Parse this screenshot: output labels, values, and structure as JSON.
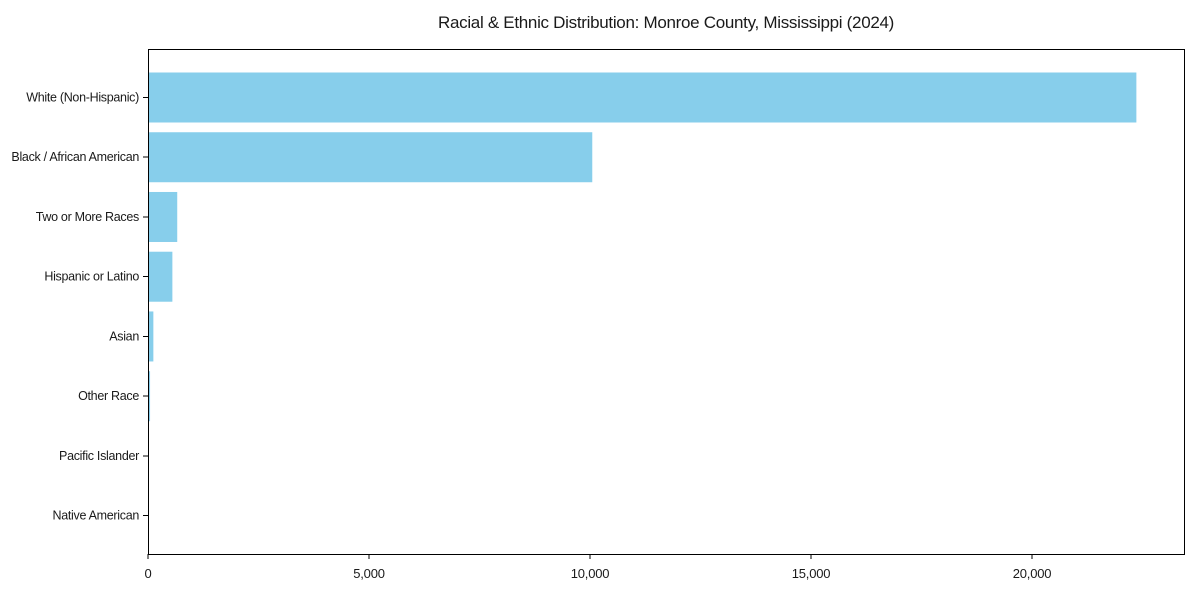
{
  "chart_data": {
    "type": "bar",
    "orientation": "horizontal",
    "title": "Racial & Ethnic Distribution: Monroe County, Mississippi (2024)",
    "categories": [
      "White (Non-Hispanic)",
      "Black / African American",
      "Two or More Races",
      "Hispanic or Latino",
      "Asian",
      "Other Race",
      "Pacific Islander",
      "Native American"
    ],
    "values": [
      22350,
      10040,
      650,
      540,
      110,
      35,
      10,
      5
    ],
    "xlabel": "",
    "ylabel": "",
    "xlim": [
      0,
      23440
    ],
    "xticks": [
      0,
      5000,
      10000,
      15000,
      20000
    ],
    "xtick_labels": [
      "0",
      "5,000",
      "10,000",
      "15,000",
      "20,000"
    ],
    "bar_color": "#87CEEB",
    "axis_color": "#000000",
    "text_color": "#1a1a1a",
    "background_color": "#ffffff",
    "grid": false,
    "legend": "none"
  }
}
